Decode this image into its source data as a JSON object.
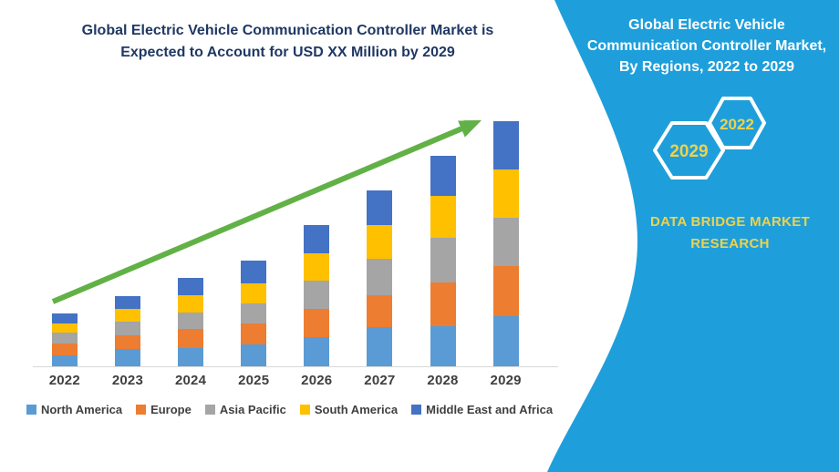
{
  "main": {
    "title_line1": "Global Electric Vehicle Communication Controller Market is",
    "title_line2": "Expected to Account for USD XX Million by 2029"
  },
  "side_panel": {
    "title": "Global Electric Vehicle Communication Controller Market, By Regions, 2022 to 2029",
    "hexagons": [
      {
        "label": "2029"
      },
      {
        "label": "2022"
      }
    ],
    "brand": "DATA BRIDGE MARKET RESEARCH"
  },
  "chart_data": {
    "type": "bar",
    "stacked": true,
    "title": "Global Electric Vehicle Communication Controller Market is Expected to Account for USD XX Million by 2029",
    "categories": [
      "2022",
      "2023",
      "2024",
      "2025",
      "2026",
      "2027",
      "2028",
      "2029"
    ],
    "series": [
      {
        "name": "North America",
        "color": "#5B9BD5",
        "values": [
          12.3,
          18.7,
          20.0,
          24.0,
          32.3,
          43.3,
          44.0,
          55.0
        ]
      },
      {
        "name": "Europe",
        "color": "#ED7D31",
        "values": [
          12.3,
          15.3,
          20.7,
          23.3,
          31.0,
          34.7,
          48.3,
          54.6
        ]
      },
      {
        "name": "Asia Pacific",
        "color": "#A5A5A5",
        "values": [
          12.7,
          15.0,
          18.3,
          21.7,
          30.7,
          40.0,
          48.3,
          53.4
        ]
      },
      {
        "name": "South America",
        "color": "#FFC000",
        "values": [
          10.0,
          14.3,
          19.0,
          21.7,
          30.0,
          36.7,
          46.7,
          52.6
        ]
      },
      {
        "name": "Middle East and Africa",
        "color": "#4472C4",
        "values": [
          10.7,
          14.2,
          18.7,
          25.7,
          31.0,
          38.3,
          43.7,
          53.4
        ]
      }
    ],
    "totals": [
      58.0,
      77.5,
      96.7,
      116.4,
      155.0,
      193.0,
      231.0,
      269.0
    ],
    "xlabel": "",
    "ylabel": "",
    "value_axis_visible": false,
    "units": "relative units (chart shows USD XX Million; segment values estimated from bar pixel heights)",
    "grid": false,
    "legend_position": "bottom",
    "trend_arrow": true
  },
  "colors": {
    "panel_blue": "#1E9FDB",
    "title_navy": "#1F3864",
    "accent_yellow": "#EDD24F",
    "arrow_green": "#62B146",
    "axis_gray": "#D9D9D9",
    "label_gray": "#404040"
  }
}
